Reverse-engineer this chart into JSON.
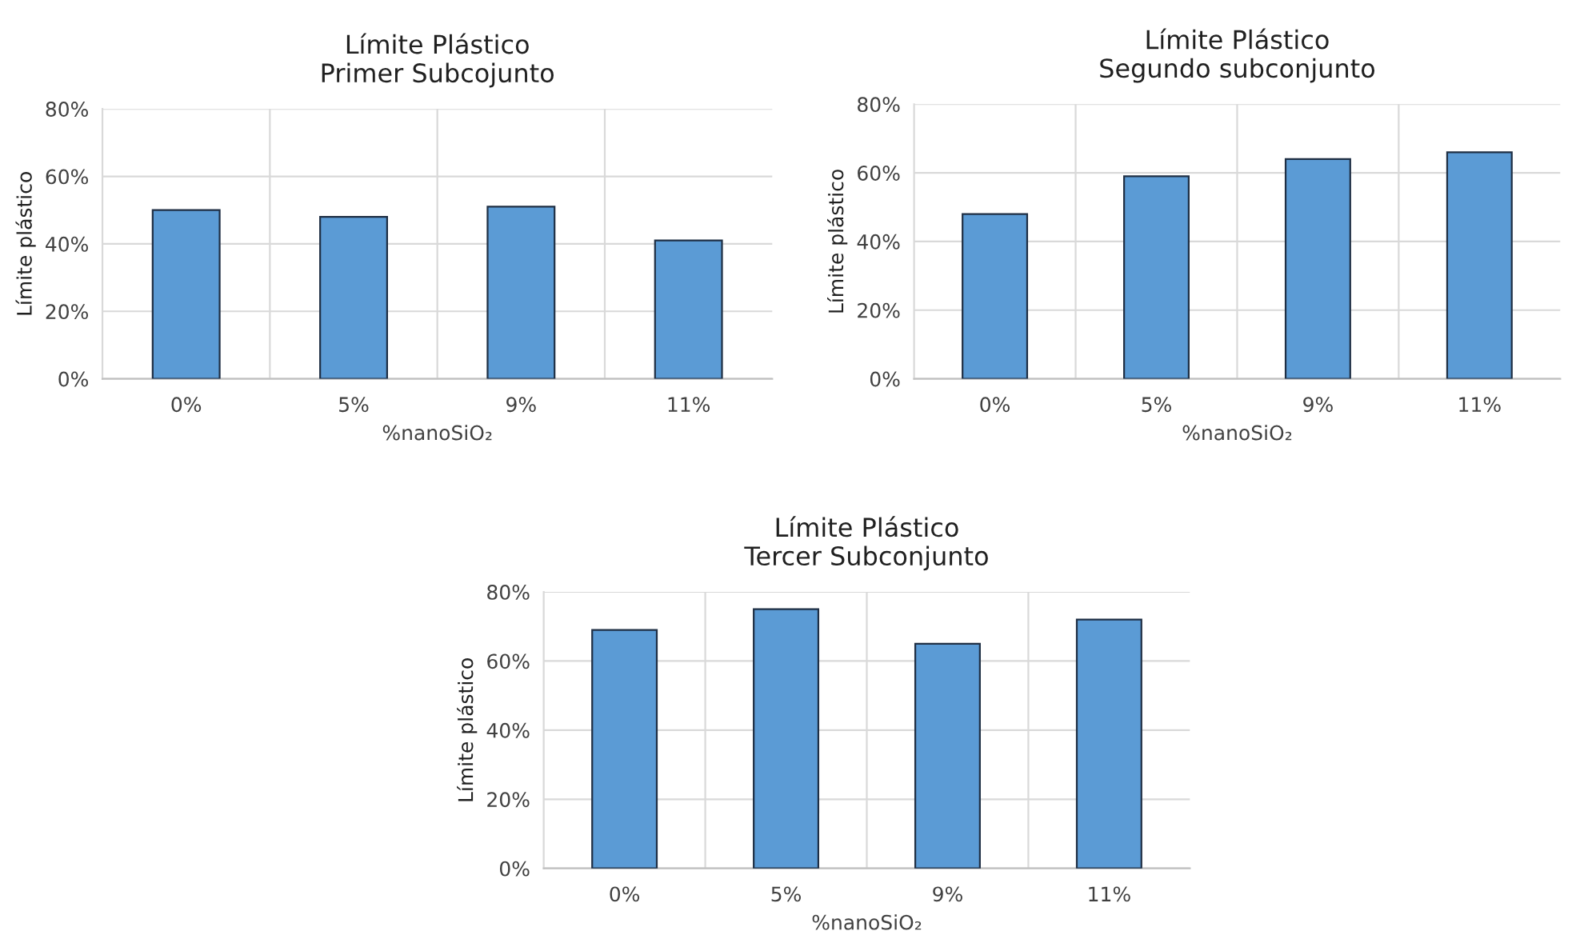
{
  "chart_data": [
    {
      "type": "bar",
      "title": "Límite Plástico",
      "subtitle": "Primer Subcojunto",
      "xlabel": "%nanoSiO₂",
      "ylabel": "Límite plástico",
      "categories": [
        "0%",
        "5%",
        "9%",
        "11%"
      ],
      "values": [
        50,
        48,
        51,
        41
      ],
      "color": "#5b9bd5",
      "ylim": [
        0,
        80
      ],
      "yticks": [
        {
          "value": 0,
          "label": "0%"
        },
        {
          "value": 20,
          "label": "20%"
        },
        {
          "value": 40,
          "label": "40%"
        },
        {
          "value": 60,
          "label": "60%"
        },
        {
          "value": 80,
          "label": "80%"
        }
      ],
      "grid": true,
      "legend": false
    },
    {
      "type": "bar",
      "title": "Límite Plástico",
      "subtitle": "Segundo subconjunto",
      "xlabel": "%nanoSiO₂",
      "ylabel": "Límite plástico",
      "categories": [
        "0%",
        "5%",
        "9%",
        "11%"
      ],
      "values": [
        48,
        59,
        64,
        66
      ],
      "color": "#5b9bd5",
      "ylim": [
        0,
        80
      ],
      "yticks": [
        {
          "value": 0,
          "label": "0%"
        },
        {
          "value": 20,
          "label": "20%"
        },
        {
          "value": 40,
          "label": "40%"
        },
        {
          "value": 60,
          "label": "60%"
        },
        {
          "value": 80,
          "label": "80%"
        }
      ],
      "grid": true,
      "legend": false
    },
    {
      "type": "bar",
      "title": "Límite Plástico",
      "subtitle": "Tercer Subconjunto",
      "xlabel": "%nanoSiO₂",
      "ylabel": "Límite plástico",
      "categories": [
        "0%",
        "5%",
        "9%",
        "11%"
      ],
      "values": [
        69,
        75,
        65,
        72
      ],
      "color": "#5b9bd5",
      "ylim": [
        0,
        80
      ],
      "yticks": [
        {
          "value": 0,
          "label": "0%"
        },
        {
          "value": 20,
          "label": "20%"
        },
        {
          "value": 40,
          "label": "40%"
        },
        {
          "value": 60,
          "label": "60%"
        },
        {
          "value": 80,
          "label": "80%"
        }
      ],
      "grid": true,
      "legend": false
    }
  ]
}
